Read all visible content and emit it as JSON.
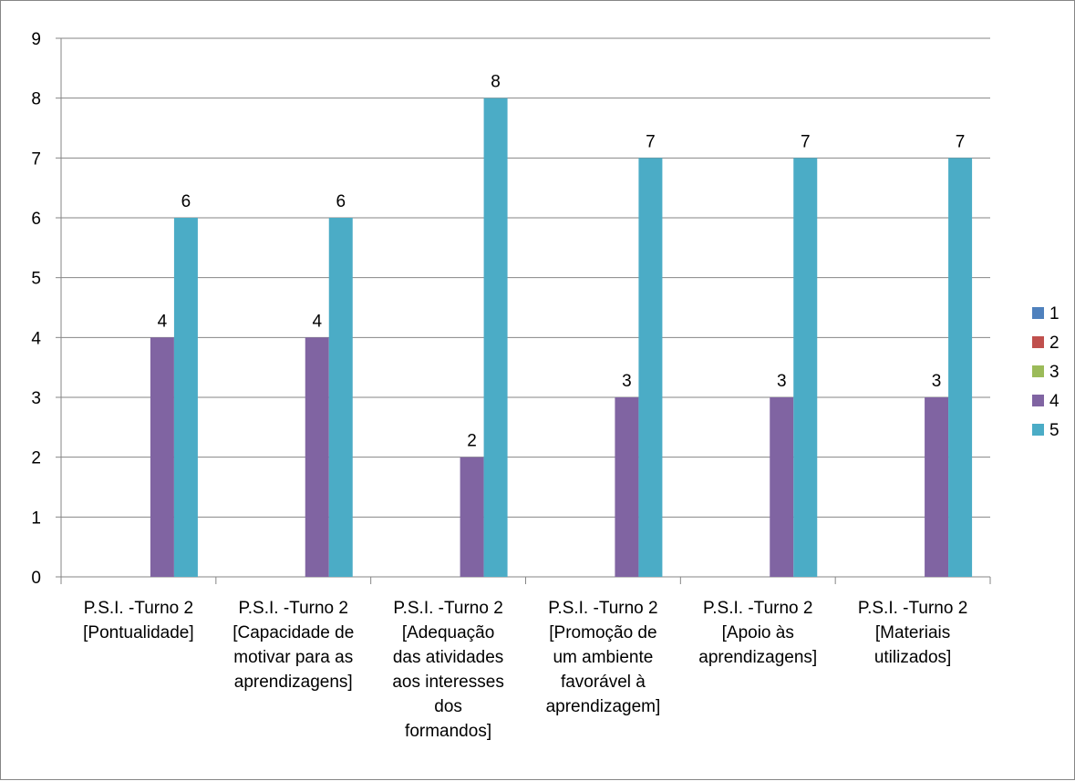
{
  "chart_data": {
    "type": "bar",
    "title": "",
    "xlabel": "",
    "ylabel": "",
    "ylim": [
      0,
      9
    ],
    "yticks": [
      0,
      1,
      2,
      3,
      4,
      5,
      6,
      7,
      8,
      9
    ],
    "grid": true,
    "legend_position": "right",
    "categories": [
      [
        "P.S.I. -Turno 2",
        "[Pontualidade]"
      ],
      [
        "P.S.I. -Turno 2",
        "[Capacidade de",
        "motivar para as",
        "aprendizagens]"
      ],
      [
        "P.S.I. -Turno 2",
        "[Adequação",
        "das atividades",
        "aos interesses",
        "dos",
        "formandos]"
      ],
      [
        "P.S.I. -Turno 2",
        "[Promoção de",
        "um ambiente",
        "favorável à",
        "aprendizagem]"
      ],
      [
        "P.S.I. -Turno 2",
        "[Apoio às",
        "aprendizagens]"
      ],
      [
        "P.S.I. -Turno 2",
        "[Materiais",
        "utilizados]"
      ]
    ],
    "series": [
      {
        "name": "1",
        "color": "#4F81BD",
        "values": [
          0,
          0,
          0,
          0,
          0,
          0
        ]
      },
      {
        "name": "2",
        "color": "#C0504D",
        "values": [
          0,
          0,
          0,
          0,
          0,
          0
        ]
      },
      {
        "name": "3",
        "color": "#9BBB59",
        "values": [
          0,
          0,
          0,
          0,
          0,
          0
        ]
      },
      {
        "name": "4",
        "color": "#8064A2",
        "values": [
          4,
          4,
          2,
          3,
          3,
          3
        ]
      },
      {
        "name": "5",
        "color": "#4BACC6",
        "values": [
          6,
          6,
          8,
          7,
          7,
          7
        ]
      }
    ],
    "data_labels": true
  }
}
